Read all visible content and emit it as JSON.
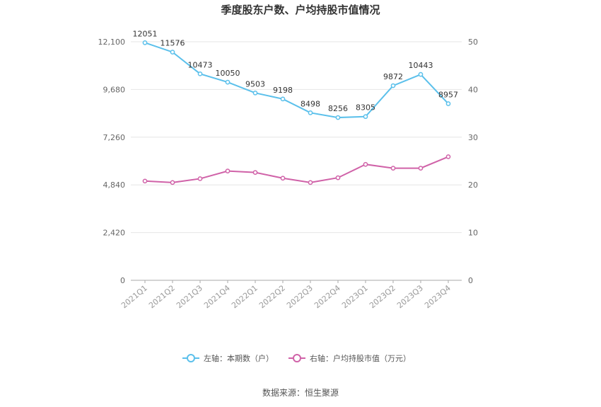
{
  "chart_data": {
    "type": "line",
    "title": "季度股东户数、户均持股市值情况",
    "categories": [
      "2021Q1",
      "2021Q2",
      "2021Q3",
      "2021Q4",
      "2022Q1",
      "2022Q2",
      "2022Q3",
      "2022Q4",
      "2023Q1",
      "2023Q2",
      "2023Q3",
      "2023Q4"
    ],
    "y_left": {
      "min": 0,
      "max": 12100,
      "ticks": [
        "0",
        "2,420",
        "4,840",
        "7,260",
        "9,680",
        "12,100"
      ]
    },
    "y_right": {
      "min": 0,
      "max": 50,
      "ticks": [
        "0",
        "10",
        "20",
        "30",
        "40",
        "50"
      ]
    },
    "series": [
      {
        "name": "左轴：本期数（户）",
        "axis": "left",
        "color": "#5bc0eb",
        "values": [
          12051,
          11576,
          10473,
          10050,
          9503,
          9198,
          8498,
          8256,
          8305,
          9872,
          10443,
          8957
        ],
        "labels": [
          "12051",
          "11576",
          "10473",
          "10050",
          "9503",
          "9198",
          "8498",
          "8256",
          "8305",
          "9872",
          "10443",
          "8957"
        ]
      },
      {
        "name": "右轴：户均持股市值（万元）",
        "axis": "right",
        "color": "#d062a8",
        "values": [
          20.8,
          20.5,
          21.3,
          22.9,
          22.6,
          21.4,
          20.5,
          21.5,
          24.3,
          23.5,
          23.5,
          25.9
        ]
      }
    ],
    "grid": true,
    "legend_position": "bottom"
  },
  "source": "数据来源：恒生聚源"
}
